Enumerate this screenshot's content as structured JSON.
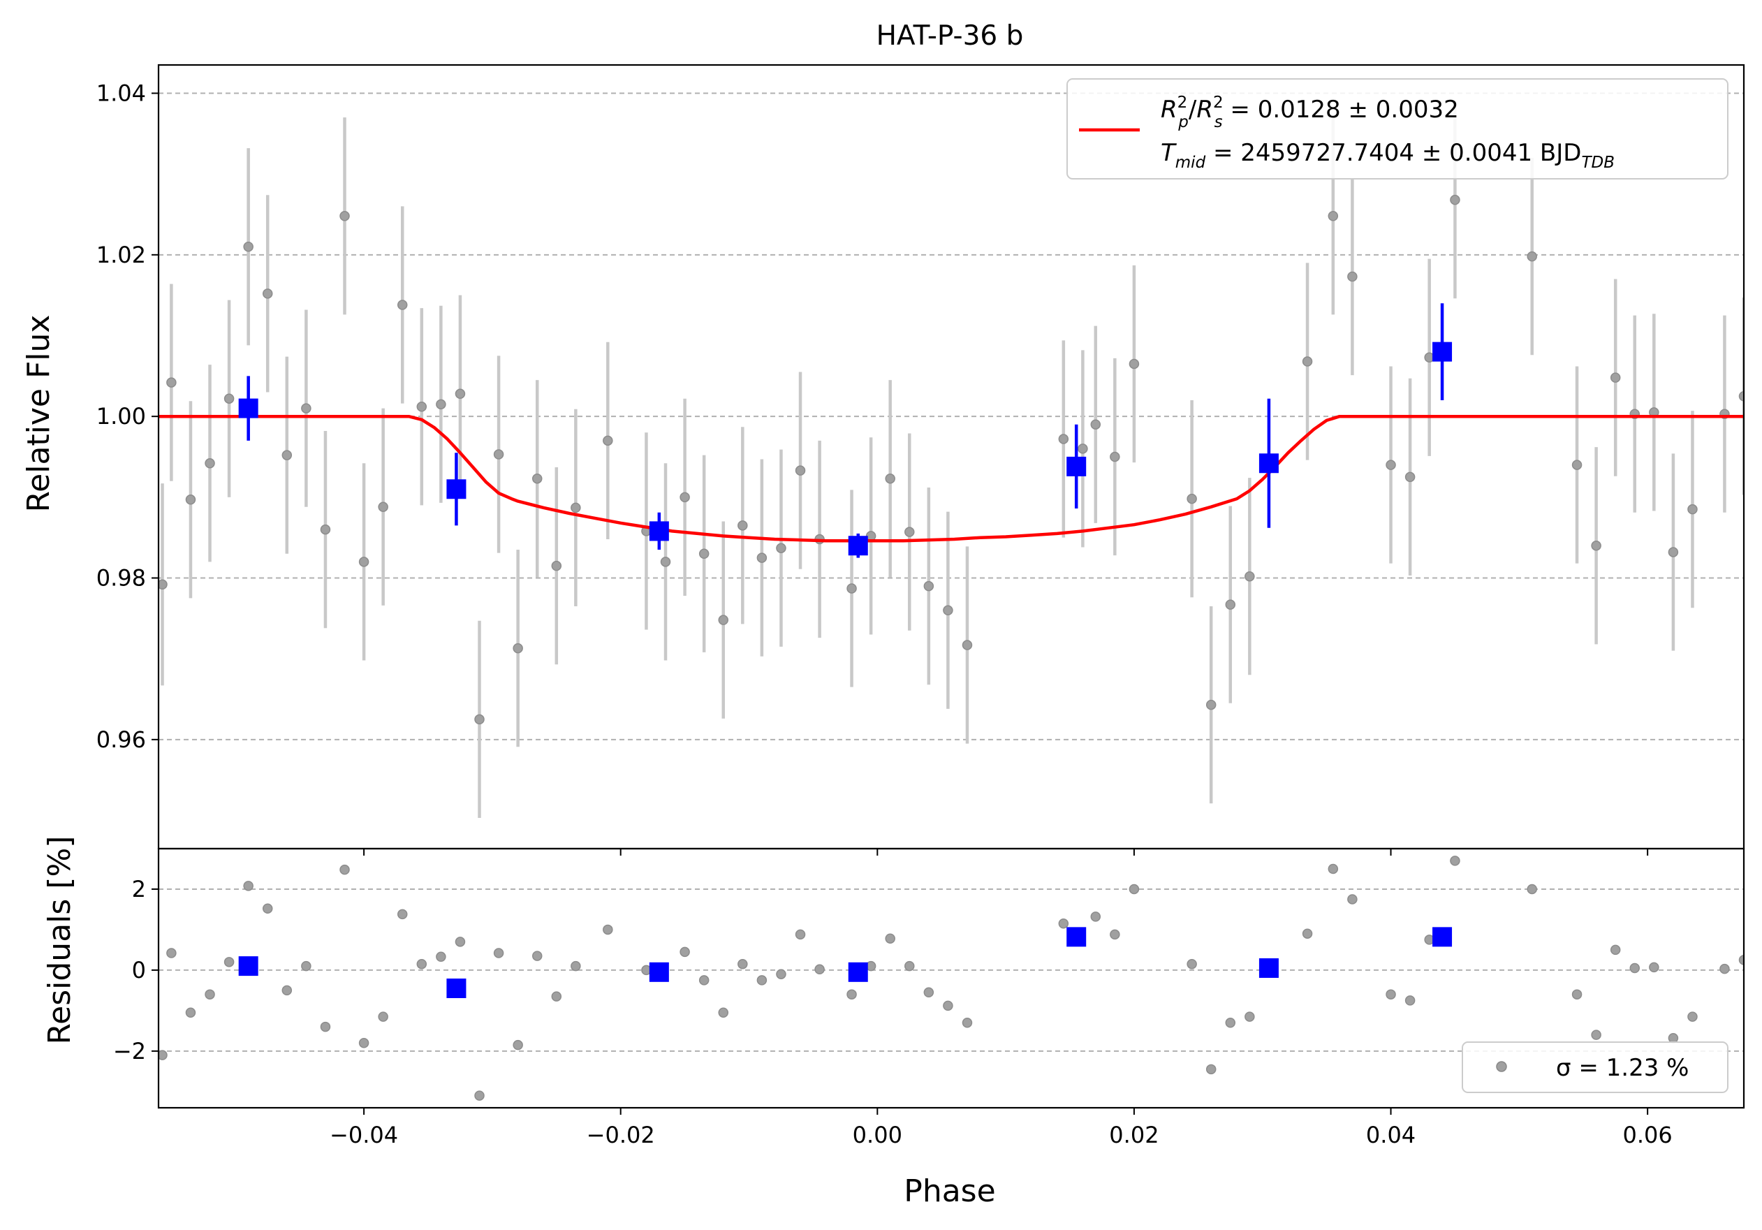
{
  "chart_data": [
    {
      "type": "scatter",
      "panel": "main",
      "title": "HAT-P-36 b",
      "xlabel": "",
      "ylabel": "Relative Flux",
      "xlim": [
        -0.056,
        0.0675
      ],
      "ylim": [
        0.9465,
        1.0435
      ],
      "xticks": [
        -0.04,
        -0.02,
        0.0,
        0.02,
        0.04,
        0.06
      ],
      "xtick_labels": [
        "−0.04",
        "−0.02",
        "0.00",
        "0.02",
        "0.04",
        "0.06"
      ],
      "yticks": [
        0.96,
        0.98,
        1.0,
        1.02,
        1.04
      ],
      "ytick_labels": [
        "0.96",
        "0.98",
        "1.00",
        "1.02",
        "1.04"
      ],
      "grid": "horizontal dashed",
      "legend_position": "top-right",
      "legend_lines": [
        {
          "base": "R",
          "sub": "p",
          "sup": "2",
          "mid": "/",
          "base2": "R",
          "sub2": "s",
          "sup2": "2",
          "rest": " = 0.0128 ± 0.0032"
        },
        {
          "base": "T",
          "sub": "mid",
          "rest": " = 2459727.7404 ± 0.0041 BJD",
          "tail_sub": "TDB"
        }
      ],
      "colors": {
        "raw": "#a0a0a0",
        "errorbar": "#c8c8c8",
        "binned": "#0000ff",
        "model": "#ff0000"
      },
      "model": {
        "name": "R²p/R²s = 0.0128 ± 0.0032",
        "color": "#ff0000",
        "points": [
          [
            -0.056,
            1.0
          ],
          [
            -0.0365,
            1.0
          ],
          [
            -0.0355,
            0.9996
          ],
          [
            -0.0345,
            0.9986
          ],
          [
            -0.0335,
            0.9972
          ],
          [
            -0.0325,
            0.9955
          ],
          [
            -0.0315,
            0.9937
          ],
          [
            -0.0305,
            0.9919
          ],
          [
            -0.0295,
            0.9905
          ],
          [
            -0.0285,
            0.9898
          ],
          [
            -0.028,
            0.9895
          ],
          [
            -0.026,
            0.9887
          ],
          [
            -0.024,
            0.988
          ],
          [
            -0.022,
            0.9874
          ],
          [
            -0.02,
            0.9868
          ],
          [
            -0.018,
            0.9863
          ],
          [
            -0.016,
            0.9858
          ],
          [
            -0.014,
            0.9855
          ],
          [
            -0.012,
            0.9852
          ],
          [
            -0.01,
            0.985
          ],
          [
            -0.008,
            0.9848
          ],
          [
            -0.006,
            0.9847
          ],
          [
            -0.004,
            0.9846
          ],
          [
            -0.002,
            0.9846
          ],
          [
            0.0,
            0.9846
          ],
          [
            0.002,
            0.9846
          ],
          [
            0.004,
            0.9847
          ],
          [
            0.006,
            0.9848
          ],
          [
            0.008,
            0.985
          ],
          [
            0.01,
            0.9851
          ],
          [
            0.012,
            0.9853
          ],
          [
            0.014,
            0.9855
          ],
          [
            0.016,
            0.9858
          ],
          [
            0.018,
            0.9862
          ],
          [
            0.02,
            0.9866
          ],
          [
            0.022,
            0.9872
          ],
          [
            0.024,
            0.9879
          ],
          [
            0.026,
            0.9888
          ],
          [
            0.028,
            0.9898
          ],
          [
            0.029,
            0.9908
          ],
          [
            0.03,
            0.9922
          ],
          [
            0.031,
            0.9938
          ],
          [
            0.032,
            0.9955
          ],
          [
            0.033,
            0.997
          ],
          [
            0.034,
            0.9984
          ],
          [
            0.035,
            0.9995
          ],
          [
            0.036,
            1.0
          ],
          [
            0.0675,
            1.0
          ]
        ]
      },
      "raw_points": [
        {
          "x": -0.0557,
          "y": 0.9792,
          "err": 0.0125
        },
        {
          "x": -0.055,
          "y": 1.0042,
          "err": 0.0122
        },
        {
          "x": -0.0535,
          "y": 0.9897,
          "err": 0.0122
        },
        {
          "x": -0.052,
          "y": 0.9942,
          "err": 0.0122
        },
        {
          "x": -0.0505,
          "y": 1.0022,
          "err": 0.0122
        },
        {
          "x": -0.049,
          "y": 1.021,
          "err": 0.0122
        },
        {
          "x": -0.0475,
          "y": 1.0152,
          "err": 0.0122
        },
        {
          "x": -0.046,
          "y": 0.9952,
          "err": 0.0122
        },
        {
          "x": -0.0445,
          "y": 1.001,
          "err": 0.0122
        },
        {
          "x": -0.043,
          "y": 0.986,
          "err": 0.0122
        },
        {
          "x": -0.0415,
          "y": 1.0248,
          "err": 0.0122
        },
        {
          "x": -0.04,
          "y": 0.982,
          "err": 0.0122
        },
        {
          "x": -0.0385,
          "y": 0.9888,
          "err": 0.0122
        },
        {
          "x": -0.037,
          "y": 1.0138,
          "err": 0.0122
        },
        {
          "x": -0.0355,
          "y": 1.0012,
          "err": 0.0122
        },
        {
          "x": -0.034,
          "y": 1.0015,
          "err": 0.0122
        },
        {
          "x": -0.0325,
          "y": 1.0028,
          "err": 0.0122
        },
        {
          "x": -0.031,
          "y": 0.9625,
          "err": 0.0122
        },
        {
          "x": -0.0295,
          "y": 0.9953,
          "err": 0.0122
        },
        {
          "x": -0.028,
          "y": 0.9713,
          "err": 0.0122
        },
        {
          "x": -0.0265,
          "y": 0.9923,
          "err": 0.0122
        },
        {
          "x": -0.025,
          "y": 0.9815,
          "err": 0.0122
        },
        {
          "x": -0.0235,
          "y": 0.9887,
          "err": 0.0122
        },
        {
          "x": -0.021,
          "y": 0.997,
          "err": 0.0122
        },
        {
          "x": -0.018,
          "y": 0.9858,
          "err": 0.0122
        },
        {
          "x": -0.0165,
          "y": 0.982,
          "err": 0.0122
        },
        {
          "x": -0.015,
          "y": 0.99,
          "err": 0.0122
        },
        {
          "x": -0.0135,
          "y": 0.983,
          "err": 0.0122
        },
        {
          "x": -0.012,
          "y": 0.9748,
          "err": 0.0122
        },
        {
          "x": -0.0105,
          "y": 0.9865,
          "err": 0.0122
        },
        {
          "x": -0.009,
          "y": 0.9825,
          "err": 0.0122
        },
        {
          "x": -0.0075,
          "y": 0.9837,
          "err": 0.0122
        },
        {
          "x": -0.006,
          "y": 0.9933,
          "err": 0.0122
        },
        {
          "x": -0.0045,
          "y": 0.9848,
          "err": 0.0122
        },
        {
          "x": -0.002,
          "y": 0.9787,
          "err": 0.0122
        },
        {
          "x": -0.0005,
          "y": 0.9852,
          "err": 0.0122
        },
        {
          "x": 0.001,
          "y": 0.9923,
          "err": 0.0122
        },
        {
          "x": 0.0025,
          "y": 0.9857,
          "err": 0.0122
        },
        {
          "x": 0.004,
          "y": 0.979,
          "err": 0.0122
        },
        {
          "x": 0.0055,
          "y": 0.976,
          "err": 0.0122
        },
        {
          "x": 0.007,
          "y": 0.9717,
          "err": 0.0122
        },
        {
          "x": 0.0145,
          "y": 0.9972,
          "err": 0.0122
        },
        {
          "x": 0.016,
          "y": 0.996,
          "err": 0.0122
        },
        {
          "x": 0.017,
          "y": 0.999,
          "err": 0.0122
        },
        {
          "x": 0.0185,
          "y": 0.995,
          "err": 0.0122
        },
        {
          "x": 0.02,
          "y": 1.0065,
          "err": 0.0122
        },
        {
          "x": 0.0245,
          "y": 0.9898,
          "err": 0.0122
        },
        {
          "x": 0.026,
          "y": 0.9643,
          "err": 0.0122
        },
        {
          "x": 0.0275,
          "y": 0.9767,
          "err": 0.0122
        },
        {
          "x": 0.029,
          "y": 0.9802,
          "err": 0.0122
        },
        {
          "x": 0.0335,
          "y": 1.0068,
          "err": 0.0122
        },
        {
          "x": 0.0355,
          "y": 1.0248,
          "err": 0.0122
        },
        {
          "x": 0.037,
          "y": 1.0173,
          "err": 0.0122
        },
        {
          "x": 0.04,
          "y": 0.994,
          "err": 0.0122
        },
        {
          "x": 0.0415,
          "y": 0.9925,
          "err": 0.0122
        },
        {
          "x": 0.043,
          "y": 1.0073,
          "err": 0.0122
        },
        {
          "x": 0.045,
          "y": 1.0268,
          "err": 0.0122
        },
        {
          "x": 0.051,
          "y": 1.0198,
          "err": 0.0122
        },
        {
          "x": 0.0545,
          "y": 0.994,
          "err": 0.0122
        },
        {
          "x": 0.056,
          "y": 0.984,
          "err": 0.0122
        },
        {
          "x": 0.0575,
          "y": 1.0048,
          "err": 0.0122
        },
        {
          "x": 0.059,
          "y": 1.0003,
          "err": 0.0122
        },
        {
          "x": 0.0605,
          "y": 1.0005,
          "err": 0.0122
        },
        {
          "x": 0.062,
          "y": 0.9832,
          "err": 0.0122
        },
        {
          "x": 0.0635,
          "y": 0.9885,
          "err": 0.0122
        },
        {
          "x": 0.066,
          "y": 1.0003,
          "err": 0.0122
        },
        {
          "x": 0.0675,
          "y": 1.0025,
          "err": 0.0122
        }
      ],
      "binned_points": [
        {
          "x": -0.049,
          "y": 1.001,
          "err": 0.004
        },
        {
          "x": -0.0328,
          "y": 0.991,
          "err": 0.0045
        },
        {
          "x": -0.017,
          "y": 0.9858,
          "err": 0.0023
        },
        {
          "x": -0.0015,
          "y": 0.984,
          "err": 0.0015
        },
        {
          "x": 0.0155,
          "y": 0.9938,
          "err": 0.0052
        },
        {
          "x": 0.0305,
          "y": 0.9942,
          "err": 0.008
        },
        {
          "x": 0.044,
          "y": 1.008,
          "err": 0.006
        }
      ]
    },
    {
      "type": "scatter",
      "panel": "residuals",
      "xlabel": "Phase",
      "ylabel": "Residuals [%]",
      "xlim": [
        -0.056,
        0.0675
      ],
      "ylim": [
        -3.4,
        3.0
      ],
      "yticks": [
        -2,
        0,
        2
      ],
      "ytick_labels": [
        "−2",
        "0",
        "2"
      ],
      "grid": "horizontal dashed",
      "legend_position": "bottom-right",
      "legend_label": "σ = 1.23 %",
      "colors": {
        "raw": "#a0a0a0",
        "binned": "#0000ff"
      },
      "raw_points": [
        {
          "x": -0.0557,
          "y": -2.1
        },
        {
          "x": -0.055,
          "y": 0.42
        },
        {
          "x": -0.0535,
          "y": -1.05
        },
        {
          "x": -0.052,
          "y": -0.6
        },
        {
          "x": -0.0505,
          "y": 0.2
        },
        {
          "x": -0.049,
          "y": 2.08
        },
        {
          "x": -0.0475,
          "y": 1.52
        },
        {
          "x": -0.046,
          "y": -0.5
        },
        {
          "x": -0.0445,
          "y": 0.1
        },
        {
          "x": -0.043,
          "y": -1.4
        },
        {
          "x": -0.0415,
          "y": 2.48
        },
        {
          "x": -0.04,
          "y": -1.8
        },
        {
          "x": -0.0385,
          "y": -1.15
        },
        {
          "x": -0.037,
          "y": 1.38
        },
        {
          "x": -0.0355,
          "y": 0.15
        },
        {
          "x": -0.034,
          "y": 0.33
        },
        {
          "x": -0.0325,
          "y": 0.7
        },
        {
          "x": -0.031,
          "y": -3.1
        },
        {
          "x": -0.0295,
          "y": 0.42
        },
        {
          "x": -0.028,
          "y": -1.85
        },
        {
          "x": -0.0265,
          "y": 0.35
        },
        {
          "x": -0.025,
          "y": -0.65
        },
        {
          "x": -0.0235,
          "y": 0.1
        },
        {
          "x": -0.021,
          "y": 1.0
        },
        {
          "x": -0.018,
          "y": 0.0
        },
        {
          "x": -0.015,
          "y": 0.45
        },
        {
          "x": -0.0135,
          "y": -0.25
        },
        {
          "x": -0.012,
          "y": -1.05
        },
        {
          "x": -0.0105,
          "y": 0.15
        },
        {
          "x": -0.009,
          "y": -0.25
        },
        {
          "x": -0.0075,
          "y": -0.1
        },
        {
          "x": -0.006,
          "y": 0.88
        },
        {
          "x": -0.0045,
          "y": 0.02
        },
        {
          "x": -0.002,
          "y": -0.6
        },
        {
          "x": -0.0005,
          "y": 0.1
        },
        {
          "x": 0.001,
          "y": 0.78
        },
        {
          "x": 0.0025,
          "y": 0.1
        },
        {
          "x": 0.004,
          "y": -0.55
        },
        {
          "x": 0.0055,
          "y": -0.88
        },
        {
          "x": 0.007,
          "y": -1.3
        },
        {
          "x": 0.0145,
          "y": 1.15
        },
        {
          "x": 0.017,
          "y": 1.32
        },
        {
          "x": 0.0185,
          "y": 0.88
        },
        {
          "x": 0.02,
          "y": 2.0
        },
        {
          "x": 0.0245,
          "y": 0.15
        },
        {
          "x": 0.026,
          "y": -2.45
        },
        {
          "x": 0.0275,
          "y": -1.3
        },
        {
          "x": 0.029,
          "y": -1.15
        },
        {
          "x": 0.0335,
          "y": 0.9
        },
        {
          "x": 0.0355,
          "y": 2.5
        },
        {
          "x": 0.037,
          "y": 1.75
        },
        {
          "x": 0.04,
          "y": -0.6
        },
        {
          "x": 0.0415,
          "y": -0.75
        },
        {
          "x": 0.043,
          "y": 0.75
        },
        {
          "x": 0.045,
          "y": 2.7
        },
        {
          "x": 0.051,
          "y": 2.0
        },
        {
          "x": 0.0545,
          "y": -0.6
        },
        {
          "x": 0.056,
          "y": -1.6
        },
        {
          "x": 0.0575,
          "y": 0.5
        },
        {
          "x": 0.059,
          "y": 0.05
        },
        {
          "x": 0.0605,
          "y": 0.07
        },
        {
          "x": 0.062,
          "y": -1.68
        },
        {
          "x": 0.0635,
          "y": -1.15
        },
        {
          "x": 0.066,
          "y": 0.03
        },
        {
          "x": 0.0675,
          "y": 0.25
        }
      ],
      "binned_points": [
        {
          "x": -0.049,
          "y": 0.1
        },
        {
          "x": -0.0328,
          "y": -0.45
        },
        {
          "x": -0.017,
          "y": -0.05
        },
        {
          "x": -0.0015,
          "y": -0.05
        },
        {
          "x": 0.0155,
          "y": 0.82
        },
        {
          "x": 0.0305,
          "y": 0.05
        },
        {
          "x": 0.044,
          "y": 0.82
        }
      ]
    }
  ]
}
